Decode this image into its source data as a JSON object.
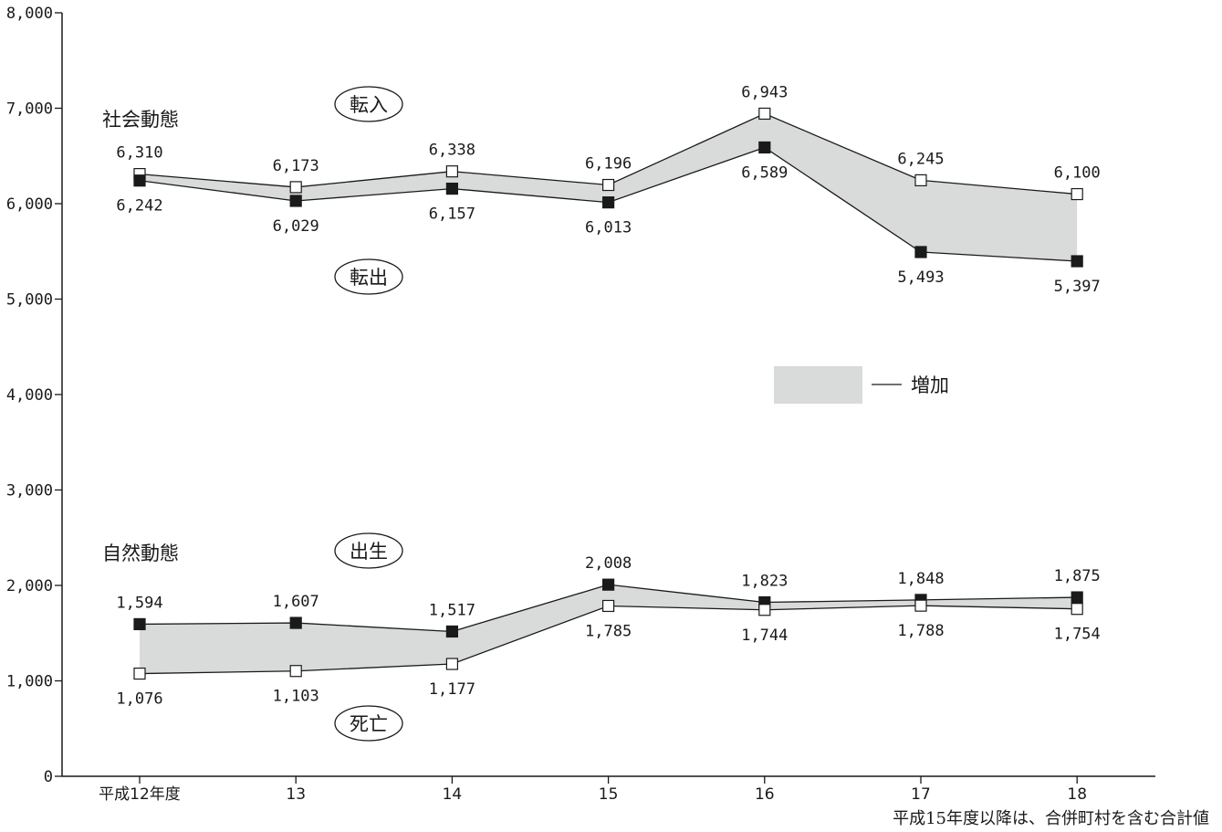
{
  "chart_data": {
    "type": "line",
    "title": "",
    "xlabel": "",
    "ylabel": "",
    "categories": [
      "平成12年度",
      "13",
      "14",
      "15",
      "16",
      "17",
      "18"
    ],
    "y_ticks": [
      "0",
      "1,000",
      "2,000",
      "3,000",
      "4,000",
      "5,000",
      "6,000",
      "7,000",
      "8,000"
    ],
    "ylim": [
      0,
      8000
    ],
    "grid": false,
    "legend_placement": "middle-right",
    "legend": {
      "label": "増加",
      "swatch_color": "#d9dbdb"
    },
    "note": "平成15年度以降は、合併町村を含む合計値",
    "groups": [
      {
        "name": "社会動態",
        "series": [
          {
            "name": "転入",
            "marker": "open-square",
            "values": [
              6310,
              6173,
              6338,
              6196,
              6943,
              6245,
              6100
            ],
            "labels": [
              "6,310",
              "6,173",
              "6,338",
              "6,196",
              "6,943",
              "6,245",
              "6,100"
            ]
          },
          {
            "name": "転出",
            "marker": "filled-square",
            "values": [
              6242,
              6029,
              6157,
              6013,
              6589,
              5493,
              5397
            ],
            "labels": [
              "6,242",
              "6,029",
              "6,157",
              "6,013",
              "6,589",
              "5,493",
              "5,397"
            ]
          }
        ]
      },
      {
        "name": "自然動態",
        "series": [
          {
            "name": "出生",
            "marker": "filled-square",
            "values": [
              1594,
              1607,
              1517,
              2008,
              1823,
              1848,
              1875
            ],
            "labels": [
              "1,594",
              "1,607",
              "1,517",
              "2,008",
              "1,823",
              "1,848",
              "1,875"
            ]
          },
          {
            "name": "死亡",
            "marker": "open-square",
            "values": [
              1076,
              1103,
              1177,
              1785,
              1744,
              1788,
              1754
            ],
            "labels": [
              "1,076",
              "1,103",
              "1,177",
              "1,785",
              "1,744",
              "1,788",
              "1,754"
            ]
          }
        ]
      }
    ],
    "colors": {
      "fill": "#d9dbdb",
      "line": "#1a1a1a",
      "marker_fill": "#1a1a1a",
      "open_marker_fill": "#ffffff"
    }
  }
}
